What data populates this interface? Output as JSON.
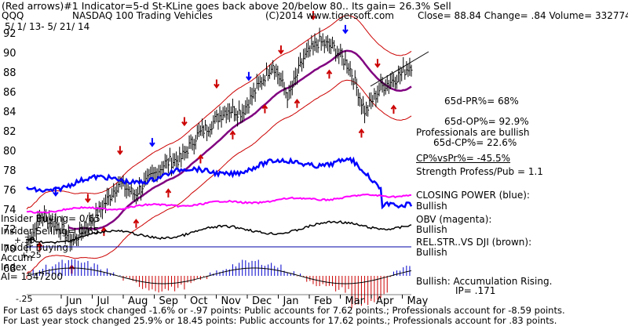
{
  "header": {
    "line1_left": "(Red arrows)#1 Indicator=5-d St-KLine goes back above 20/below 80.. Its gain= 26.3% Sell",
    "ticker": "QQQ",
    "name": "NASDAQ 100 Trading Vehicles",
    "copyright": "(C)2014 www.tigersoft.com",
    "quote": "Close=  88.84  Change= .84 Volume= 332774",
    "date_range": "5/ 1/ 13-  5/ 21/ 14"
  },
  "right_panel": {
    "pr": "65d-PR%= 68%",
    "op": "65d-OP%= 92.9%",
    "professionals": "Professionals are bullish",
    "cp": "65d-CP%= 22.6%",
    "cpvspr": "CP%vsPr%= -45.5%",
    "strength": "Strength Profess/Pub = 1.1",
    "closing_power_label": "CLOSING POWER (blue):",
    "closing_power_value": "Bullish",
    "obv_label": "OBV (magenta):",
    "obv_value": "Bullish",
    "relstr_label": "REL.STR..VS DJI (brown):",
    "relstr_value": "Bullish",
    "accum_label": "Bullish: Accumulation Rising.",
    "ip": "IP=  .171"
  },
  "left_labels": {
    "insider_buying_count": "Insider Buying= 0/65",
    "insider_selling_count": "Insider Selling= 0/65",
    "plus30": "+.30",
    "insider_buying": "Insider Buying",
    "plus25": "+.25",
    "accum": "Accum",
    "index": "Index",
    "ai": "AI= 1547200",
    "minus25": "-.25"
  },
  "footer": {
    "line1": "For Last 65 days stock changed -1.6% or -.97 points:  Public accounts for  7.62 points.;  Professionals account for -8.59 points.",
    "line2": "For Last year stock changed  25.9% or  18.45 points:  Public accounts for  17.62 points.;  Professionals account for  .83 points."
  },
  "colors": {
    "price": "#000000",
    "ma": "#800080",
    "bands": "#cc0000",
    "closing_power": "#0000ff",
    "obv": "#ff00ff",
    "relstr": "#000000",
    "accum_pos": "#0000cc",
    "accum_neg": "#cc0000",
    "buy_arrow": "#cc0000",
    "sell_arrow": "#0000ff"
  },
  "chart_data": {
    "type": "line",
    "y_ticks": [
      92,
      90,
      88,
      86,
      84,
      82,
      80,
      78,
      76,
      74,
      72,
      70,
      68
    ],
    "x_ticks": [
      "Jun",
      "Jul",
      "Aug",
      "Sep",
      "Oct",
      "Nov",
      "Dec",
      "Jan",
      "Feb",
      "Mar",
      "Apr",
      "May"
    ],
    "ylim": [
      66,
      93
    ],
    "price": [
      {
        "month": "May-13",
        "value": 70.5
      },
      {
        "month": "May-13b",
        "value": 73.5
      },
      {
        "month": "Jun",
        "value": 72.5
      },
      {
        "month": "Jun-b",
        "value": 70.8
      },
      {
        "month": "Jul",
        "value": 72.5
      },
      {
        "month": "Jul-b",
        "value": 74.5
      },
      {
        "month": "Aug",
        "value": 76.8
      },
      {
        "month": "Aug-b",
        "value": 75.6
      },
      {
        "month": "Sep",
        "value": 77.2
      },
      {
        "month": "Sep-b",
        "value": 78.8
      },
      {
        "month": "Oct",
        "value": 79.2
      },
      {
        "month": "Oct-b",
        "value": 81.5
      },
      {
        "month": "Nov",
        "value": 82.8
      },
      {
        "month": "Nov-b",
        "value": 84.3
      },
      {
        "month": "Dec",
        "value": 84.0
      },
      {
        "month": "Dec-b",
        "value": 86.5
      },
      {
        "month": "Jan",
        "value": 89.0
      },
      {
        "month": "Jan-b",
        "value": 85.5
      },
      {
        "month": "Feb",
        "value": 89.5
      },
      {
        "month": "Feb-b",
        "value": 91.2
      },
      {
        "month": "Mar",
        "value": 90.5
      },
      {
        "month": "Mar-b",
        "value": 88.5
      },
      {
        "month": "Apr",
        "value": 84.0
      },
      {
        "month": "Apr-b",
        "value": 86.5
      },
      {
        "month": "May",
        "value": 87.5
      },
      {
        "month": "May-end",
        "value": 88.84
      }
    ]
  }
}
